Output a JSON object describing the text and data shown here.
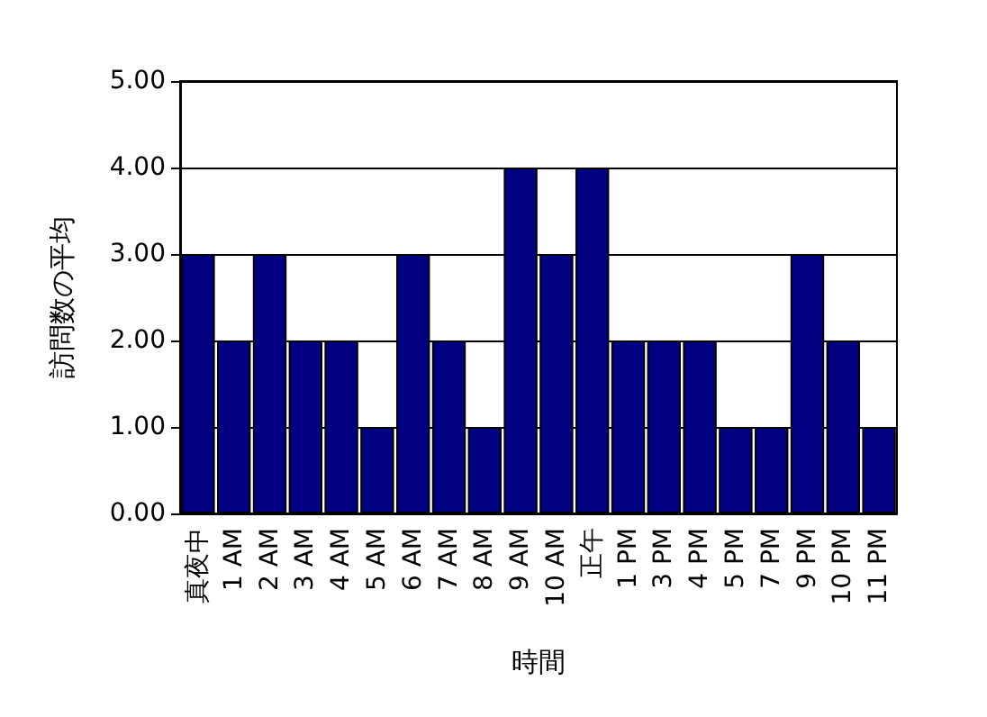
{
  "chart_data": {
    "type": "bar",
    "xlabel": "時間",
    "ylabel": "訪問数の平均",
    "categories": [
      "真夜中",
      "1 AM",
      "2 AM",
      "3 AM",
      "4 AM",
      "5 AM",
      "6 AM",
      "7 AM",
      "8 AM",
      "9 AM",
      "10 AM",
      "正午",
      "1 PM",
      "3 PM",
      "4 PM",
      "5 PM",
      "7 PM",
      "9 PM",
      "10 PM",
      "11 PM"
    ],
    "values": [
      3,
      2,
      3,
      2,
      2,
      1,
      3,
      2,
      1,
      4,
      3,
      4,
      2,
      2,
      2,
      1,
      1,
      3,
      2,
      1
    ],
    "color": "#000080",
    "ylim": [
      0,
      5
    ],
    "yticks": [
      {
        "value": 0,
        "label": "0.00"
      },
      {
        "value": 1,
        "label": "1.00"
      },
      {
        "value": 2,
        "label": "2.00"
      },
      {
        "value": 3,
        "label": "3.00"
      },
      {
        "value": 4,
        "label": "4.00"
      },
      {
        "value": 5,
        "label": "5.00"
      }
    ],
    "grid": "y"
  }
}
